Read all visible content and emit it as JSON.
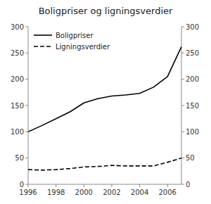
{
  "chart_data": {
    "type": "line",
    "title": "Boligpriser og ligningsverdier",
    "x": [
      1996,
      1997,
      1998,
      1999,
      2000,
      2001,
      2002,
      2003,
      2004,
      2005,
      2006,
      2007
    ],
    "series": [
      {
        "name": "Boligpriser",
        "color": "#000000",
        "line_style": "solid",
        "values": [
          100,
          112,
          125,
          138,
          155,
          163,
          168,
          170,
          173,
          185,
          205,
          262
        ]
      },
      {
        "name": "Ligningsverdier",
        "color": "#000000",
        "line_style": "dashed",
        "values": [
          28,
          27,
          28,
          30,
          33,
          34,
          36,
          35,
          35,
          35,
          42,
          50
        ]
      }
    ],
    "xlim": [
      1996,
      2007
    ],
    "xticks": [
      1996,
      1998,
      2000,
      2002,
      2004,
      2006
    ],
    "ylim": [
      0,
      300
    ],
    "yticks": [
      0,
      50,
      100,
      150,
      200,
      250,
      300
    ],
    "y2lim": [
      0,
      300
    ],
    "y2ticks": [
      0,
      50,
      100,
      150,
      200,
      250,
      300
    ],
    "legend": "upper left"
  }
}
